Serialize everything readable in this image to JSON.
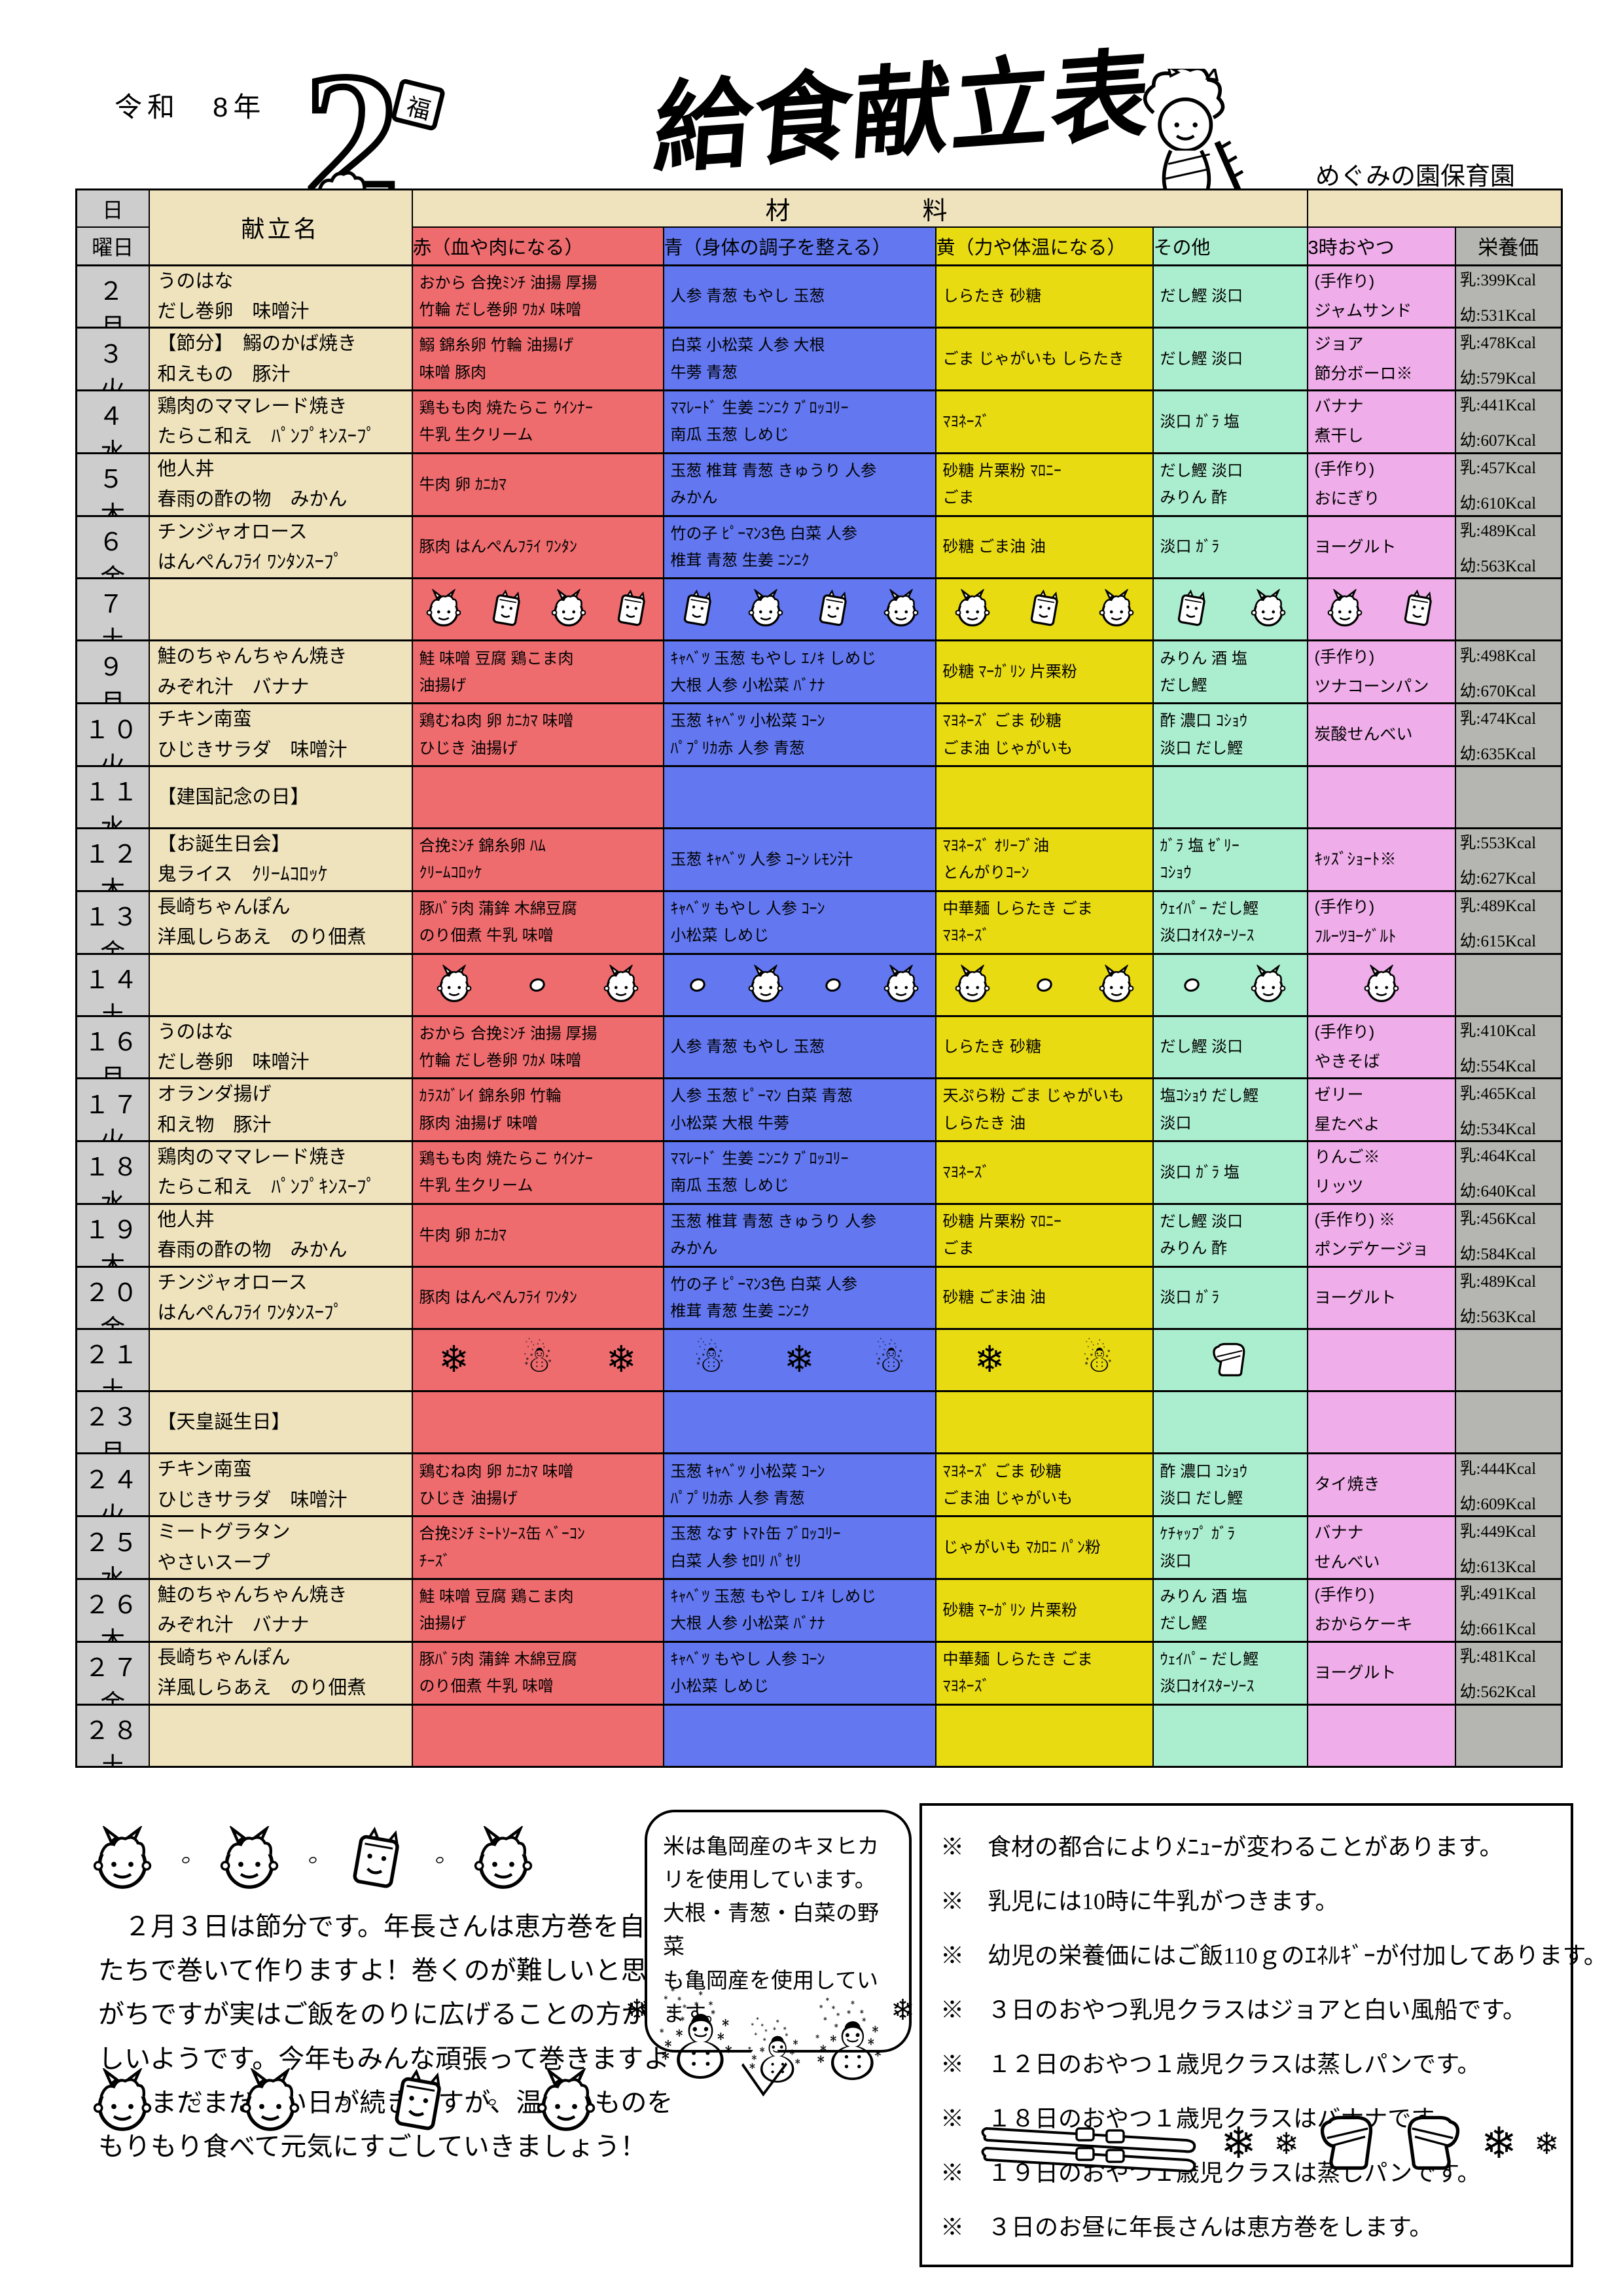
{
  "header": {
    "era": "令和　8年",
    "month": "2",
    "title": "給食献立表",
    "school": "めぐみの園保育園"
  },
  "colors": {
    "tan": "#EFE3BE",
    "red": "#EE6B6E",
    "blue": "#6277F0",
    "yellow": "#E9DB11",
    "mint": "#ABEDCF",
    "pink": "#EFADE9",
    "day_gray": "#CDCDCD",
    "nutrition_gray": "#B5B5B1"
  },
  "icons": {
    "snowflake": "❄",
    "snowman": "☃"
  },
  "table": {
    "headers": {
      "day": "日",
      "weekday": "曜日",
      "menu": "献立名",
      "ingredients": "材　　　　料",
      "red": "赤（血や肉になる）",
      "blue": "青（身体の調子を整える）",
      "yellow": "黄（力や体温になる）",
      "other": "その他",
      "snack": "3時おやつ",
      "nutrition": "栄養価"
    },
    "rows": [
      {
        "day": "２",
        "wd": "月",
        "menu": "うのはな\nだし巻卵　味噌汁",
        "red": "おから 合挽ﾐﾝﾁ 油揚 厚揚\n竹輪 だし巻卵 ﾜｶﾒ 味噌",
        "blue": "人参 青葱 もやし 玉葱",
        "yellow": "しらたき 砂糖",
        "other": "だし鰹 淡口",
        "snack": "(手作り)\nジャムサンド",
        "milk": "乳:399Kcal",
        "child": "幼:531Kcal"
      },
      {
        "day": "３",
        "wd": "火",
        "menu": "【節分】　鰯のかば焼き\n和えもの　豚汁",
        "red": "鰯 錦糸卵 竹輪 油揚げ\n味噌 豚肉",
        "blue": "白菜 小松菜 人参 大根\n牛蒡 青葱",
        "yellow": "ごま じゃがいも しらたき",
        "other": "だし鰹 淡口",
        "snack": "ジョア\n節分ボーロ※",
        "milk": "乳:478Kcal",
        "child": "幼:579Kcal"
      },
      {
        "day": "４",
        "wd": "水",
        "menu": "鶏肉のママレード焼き\nたらこ和え　ﾊﾟﾝﾌﾟｷﾝｽｰﾌﾟ",
        "red": "鶏もも肉 焼たらこ ｳｲﾝﾅｰ\n牛乳 生クリーム",
        "blue": "ﾏﾏﾚｰﾄﾞ 生姜 ﾆﾝﾆｸ ﾌﾞﾛｯｺﾘｰ\n南瓜 玉葱 しめじ",
        "yellow": "ﾏﾖﾈｰｽﾞ",
        "other": "淡口 ｶﾞﾗ 塩",
        "snack": "バナナ\n煮干し",
        "milk": "乳:441Kcal",
        "child": "幼:607Kcal"
      },
      {
        "day": "５",
        "wd": "木",
        "menu": "他人丼\n春雨の酢の物　みかん",
        "red": "牛肉 卵 ｶﾆｶﾏ",
        "blue": "玉葱 椎茸 青葱 きゅうり 人参\nみかん",
        "yellow": "砂糖 片栗粉 ﾏﾛﾆｰ\nごま",
        "other": "だし鰹 淡口\nみりん 酢",
        "snack": "(手作り)\nおにぎり",
        "milk": "乳:457Kcal",
        "child": "幼:610Kcal"
      },
      {
        "day": "６",
        "wd": "金",
        "menu": "チンジャオロース\nはんぺんﾌﾗｲ ﾜﾝﾀﾝｽｰﾌﾟ",
        "red": "豚肉 はんぺんﾌﾗｲ ﾜﾝﾀﾝ",
        "blue": "竹の子 ﾋﾟｰﾏﾝ3色 白菜 人参\n椎茸 青葱 生姜 ﾆﾝﾆｸ",
        "yellow": "砂糖 ごま油 油",
        "other": "淡口 ｶﾞﾗ",
        "snack": "ヨーグルト",
        "milk": "乳:489Kcal",
        "child": "幼:563Kcal"
      },
      {
        "day": "７",
        "wd": "土",
        "deco": "oni-cards"
      },
      {
        "day": "９",
        "wd": "月",
        "menu": "鮭のちゃんちゃん焼き\nみぞれ汁　バナナ",
        "red": "鮭 味噌 豆腐 鶏こま肉\n油揚げ",
        "blue": "ｷｬﾍﾞﾂ 玉葱 もやし ｴﾉｷ しめじ\n大根 人参 小松菜 ﾊﾞﾅﾅ",
        "yellow": "砂糖 ﾏｰｶﾞﾘﾝ 片栗粉",
        "other": "みりん 酒 塩\nだし鰹",
        "snack": "(手作り)\nツナコーンパン",
        "milk": "乳:498Kcal",
        "child": "幼:670Kcal"
      },
      {
        "day": "１０",
        "wd": "火",
        "menu": "チキン南蛮\nひじきサラダ　味噌汁",
        "red": "鶏むね肉 卵 ｶﾆｶﾏ 味噌\nひじき 油揚げ",
        "blue": "玉葱 ｷｬﾍﾞﾂ 小松菜 ｺｰﾝ\nﾊﾟﾌﾟﾘｶ赤 人参 青葱",
        "yellow": "ﾏﾖﾈｰｽﾞ ごま 砂糖\nごま油 じゃがいも",
        "other": "酢 濃口 ｺｼｮｳ\n淡口 だし鰹",
        "snack": "炭酸せんべい",
        "milk": "乳:474Kcal",
        "child": "幼:635Kcal"
      },
      {
        "day": "１１",
        "wd": "水",
        "menu": "【建国記念の日】",
        "red": "",
        "blue": "",
        "yellow": "",
        "other": "",
        "snack": "",
        "milk": "",
        "child": ""
      },
      {
        "day": "１２",
        "wd": "木",
        "menu": "【お誕生日会】\n鬼ライス　ｸﾘｰﾑｺﾛｯｹ",
        "red": "合挽ﾐﾝﾁ 錦糸卵 ﾊﾑ\nｸﾘｰﾑｺﾛｯｹ",
        "blue": "玉葱 ｷｬﾍﾞﾂ 人参 ｺｰﾝ ﾚﾓﾝ汁",
        "yellow": "ﾏﾖﾈｰｽﾞ ｵﾘｰﾌﾞ油\nとんがりｺｰﾝ",
        "other": "ｶﾞﾗ 塩 ｾﾞﾘｰ\nｺｼｮｳ",
        "snack": "ｷｯｽﾞｼｮｰﾄ※",
        "milk": "乳:553Kcal",
        "child": "幼:627Kcal"
      },
      {
        "day": "１３",
        "wd": "金",
        "menu": "長崎ちゃんぽん\n洋風しらあえ　のり佃煮",
        "red": "豚ﾊﾞﾗ肉 蒲鉾 木綿豆腐\nのり佃煮 牛乳 味噌",
        "blue": "ｷｬﾍﾞﾂ もやし 人参 ｺｰﾝ\n小松菜 しめじ",
        "yellow": "中華麺 しらたき ごま\nﾏﾖﾈｰｽﾞ",
        "other": "ｳｪｲﾊﾟｰ だし鰹\n淡口ｵｲｽﾀｰｿｰｽ",
        "snack": "(手作り)\nﾌﾙｰﾂﾖｰｸﾞﾙﾄ",
        "milk": "乳:489Kcal",
        "child": "幼:615Kcal"
      },
      {
        "day": "１４",
        "wd": "土",
        "deco": "oni-beans"
      },
      {
        "day": "１６",
        "wd": "月",
        "menu": "うのはな\nだし巻卵　味噌汁",
        "red": "おから 合挽ﾐﾝﾁ 油揚 厚揚\n竹輪 だし巻卵 ﾜｶﾒ 味噌",
        "blue": "人参 青葱 もやし 玉葱",
        "yellow": "しらたき 砂糖",
        "other": "だし鰹 淡口",
        "snack": "(手作り)\nやきそば",
        "milk": "乳:410Kcal",
        "child": "幼:554Kcal"
      },
      {
        "day": "１７",
        "wd": "火",
        "menu": "オランダ揚げ\n和え物　豚汁",
        "red": "ｶﾗｽｶﾞﾚｲ 錦糸卵 竹輪\n豚肉 油揚げ 味噌",
        "blue": "人参 玉葱 ﾋﾟｰﾏﾝ 白菜 青葱\n小松菜 大根 牛蒡",
        "yellow": "天ぷら粉 ごま じゃがいも\nしらたき 油",
        "other": "塩ｺｼｮｳ だし鰹\n淡口",
        "snack": "ゼリー\n星たべよ",
        "milk": "乳:465Kcal",
        "child": "幼:534Kcal"
      },
      {
        "day": "１８",
        "wd": "水",
        "menu": "鶏肉のママレード焼き\nたらこ和え　ﾊﾟﾝﾌﾟｷﾝｽｰﾌﾟ",
        "red": "鶏もも肉 焼たらこ ｳｲﾝﾅｰ\n牛乳 生クリーム",
        "blue": "ﾏﾏﾚｰﾄﾞ 生姜 ﾆﾝﾆｸ ﾌﾞﾛｯｺﾘｰ\n南瓜 玉葱 しめじ",
        "yellow": "ﾏﾖﾈｰｽﾞ",
        "other": "淡口 ｶﾞﾗ 塩",
        "snack": "りんご※\nリッツ",
        "milk": "乳:464Kcal",
        "child": "幼:640Kcal"
      },
      {
        "day": "１９",
        "wd": "木",
        "menu": "他人丼\n春雨の酢の物　みかん",
        "red": "牛肉 卵 ｶﾆｶﾏ",
        "blue": "玉葱 椎茸 青葱 きゅうり 人参\nみかん",
        "yellow": "砂糖 片栗粉 ﾏﾛﾆｰ\nごま",
        "other": "だし鰹 淡口\nみりん 酢",
        "snack": "(手作り) ※\nポンデケージョ",
        "milk": "乳:456Kcal",
        "child": "幼:584Kcal"
      },
      {
        "day": "２０",
        "wd": "金",
        "menu": "チンジャオロース\nはんぺんﾌﾗｲ ﾜﾝﾀﾝｽｰﾌﾟ",
        "red": "豚肉 はんぺんﾌﾗｲ ﾜﾝﾀﾝ",
        "blue": "竹の子 ﾋﾟｰﾏﾝ3色 白菜 人参\n椎茸 青葱 生姜 ﾆﾝﾆｸ",
        "yellow": "砂糖 ごま油 油",
        "other": "淡口 ｶﾞﾗ",
        "snack": "ヨーグルト",
        "milk": "乳:489Kcal",
        "child": "幼:563Kcal"
      },
      {
        "day": "２１",
        "wd": "土",
        "deco": "snow"
      },
      {
        "day": "２３",
        "wd": "月",
        "menu": "【天皇誕生日】",
        "red": "",
        "blue": "",
        "yellow": "",
        "other": "",
        "snack": "",
        "milk": "",
        "child": ""
      },
      {
        "day": "２４",
        "wd": "火",
        "menu": "チキン南蛮\nひじきサラダ　味噌汁",
        "red": "鶏むね肉 卵 ｶﾆｶﾏ 味噌\nひじき 油揚げ",
        "blue": "玉葱 ｷｬﾍﾞﾂ 小松菜 ｺｰﾝ\nﾊﾟﾌﾟﾘｶ赤 人参 青葱",
        "yellow": "ﾏﾖﾈｰｽﾞ ごま 砂糖\nごま油 じゃがいも",
        "other": "酢 濃口 ｺｼｮｳ\n淡口 だし鰹",
        "snack": "タイ焼き",
        "milk": "乳:444Kcal",
        "child": "幼:609Kcal"
      },
      {
        "day": "２５",
        "wd": "水",
        "menu": "ミートグラタン\nやさいスープ",
        "red": "合挽ﾐﾝﾁ ﾐｰﾄｿｰｽ缶 ﾍﾞｰｺﾝ\nﾁｰｽﾞ",
        "blue": "玉葱 なす ﾄﾏﾄ缶 ﾌﾞﾛｯｺﾘｰ\n白菜 人参 ｾﾛﾘ ﾊﾟｾﾘ",
        "yellow": "じゃがいも ﾏｶﾛﾆ ﾊﾟﾝ粉",
        "other": "ｹﾁｬｯﾌﾟ ｶﾞﾗ\n淡口",
        "snack": "バナナ\nせんべい",
        "milk": "乳:449Kcal",
        "child": "幼:613Kcal"
      },
      {
        "day": "２６",
        "wd": "木",
        "menu": "鮭のちゃんちゃん焼き\nみぞれ汁　バナナ",
        "red": "鮭 味噌 豆腐 鶏こま肉\n油揚げ",
        "blue": "ｷｬﾍﾞﾂ 玉葱 もやし ｴﾉｷ しめじ\n大根 人参 小松菜 ﾊﾞﾅﾅ",
        "yellow": "砂糖 ﾏｰｶﾞﾘﾝ 片栗粉",
        "other": "みりん 酒 塩\nだし鰹",
        "snack": "(手作り)\nおからケーキ",
        "milk": "乳:491Kcal",
        "child": "幼:661Kcal"
      },
      {
        "day": "２７",
        "wd": "金",
        "menu": "長崎ちゃんぽん\n洋風しらあえ　のり佃煮",
        "red": "豚ﾊﾞﾗ肉 蒲鉾 木綿豆腐\nのり佃煮 牛乳 味噌",
        "blue": "ｷｬﾍﾞﾂ もやし 人参 ｺｰﾝ\n小松菜 しめじ",
        "yellow": "中華麺 しらたき ごま\nﾏﾖﾈｰｽﾞ",
        "other": "ｳｪｲﾊﾟｰ だし鰹\n淡口ｵｲｽﾀｰｿｰｽ",
        "snack": "ヨーグルト",
        "milk": "乳:481Kcal",
        "child": "幼:562Kcal"
      },
      {
        "day": "２８",
        "wd": "土",
        "deco": "empty"
      }
    ]
  },
  "footer": {
    "paragraph": "　２月３日は節分です。年長さんは恵方巻を自分たちで巻いて作りますよ！巻くのが難しいと思いがちですが実はご飯をのりに広げることの方が難しいようです。今年もみんな頑張って巻きますよ～。まだまだ寒い日が続きますが、温かいものをもりもり食べて元気にすごしていきましょう！",
    "bubble": "米は亀岡産のキヌヒカ\nリを使用しています。\n大根・青葱・白菜の野菜\nも亀岡産を使用してい\nます。",
    "notes": [
      "※　食材の都合によりﾒﾆｭｰが変わることがあります。",
      "※　乳児には10時に牛乳がつきます。",
      "※　幼児の栄養価にはご飯110ｇのｴﾈﾙｷﾞｰが付加してあります。",
      "※　３日のおやつ乳児クラスはジョアと白い風船です。",
      "※　１２日のおやつ１歳児クラスは蒸しパンです。",
      "※　１８日のおやつ１歳児クラスはバナナです。",
      "※　１９日のおやつ１歳児クラスは蒸しパンです。",
      "※　３日のお昼に年長さんは恵方巻をします。"
    ]
  }
}
